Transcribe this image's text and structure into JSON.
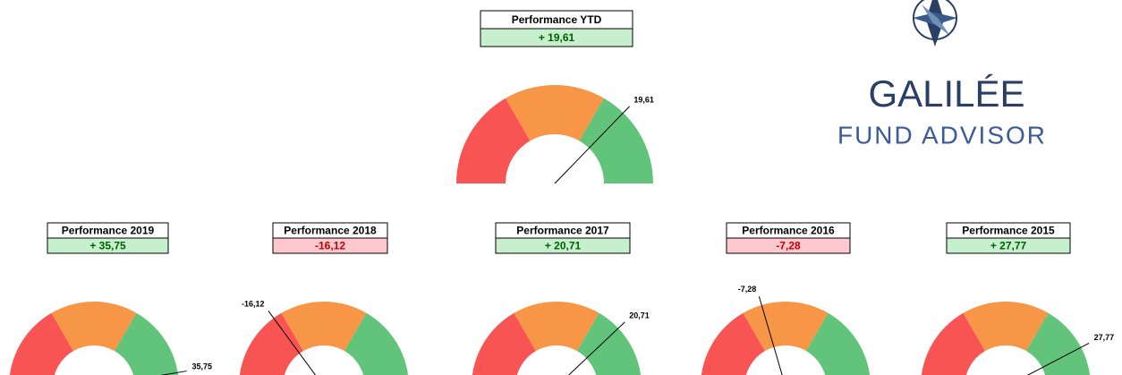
{
  "chart_data": [
    {
      "type": "gauge",
      "title": "Performance YTD",
      "value": 19.61,
      "value_label": "+ 19,61",
      "needle_label": "19,61",
      "ylim": [
        -40,
        40
      ],
      "colors": [
        "#f95454",
        "#f79646",
        "#62c47a"
      ]
    },
    {
      "type": "gauge",
      "title": "Performance 2019",
      "value": 35.75,
      "value_label": "+ 35,75",
      "needle_label": "35,75",
      "ylim": [
        -40,
        40
      ],
      "colors": [
        "#f95454",
        "#f79646",
        "#62c47a"
      ]
    },
    {
      "type": "gauge",
      "title": "Performance 2018",
      "value": -16.12,
      "value_label": "-16,12",
      "needle_label": "-16,12",
      "ylim": [
        -40,
        40
      ],
      "colors": [
        "#f95454",
        "#f79646",
        "#62c47a"
      ]
    },
    {
      "type": "gauge",
      "title": "Performance 2017",
      "value": 20.71,
      "value_label": "+ 20,71",
      "needle_label": "20,71",
      "ylim": [
        -40,
        40
      ],
      "colors": [
        "#f95454",
        "#f79646",
        "#62c47a"
      ]
    },
    {
      "type": "gauge",
      "title": "Performance 2016",
      "value": -7.28,
      "value_label": "-7,28",
      "needle_label": "-7,28",
      "ylim": [
        -40,
        40
      ],
      "colors": [
        "#f95454",
        "#f79646",
        "#62c47a"
      ]
    },
    {
      "type": "gauge",
      "title": "Performance 2015",
      "value": 27.77,
      "value_label": "+ 27,77",
      "needle_label": "27,77",
      "ylim": [
        -40,
        40
      ],
      "colors": [
        "#f95454",
        "#f79646",
        "#62c47a"
      ]
    }
  ],
  "logo": {
    "name": "GALILÉE",
    "tagline": "FUND ADVISOR"
  }
}
